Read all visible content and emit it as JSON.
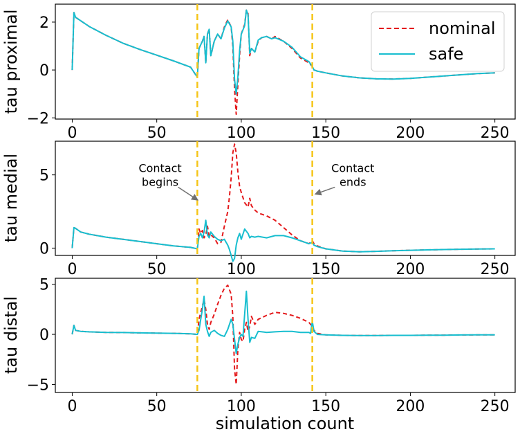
{
  "chart_data": {
    "type": "line",
    "xlabel": "simulation count",
    "xlim": [
      -10,
      262
    ],
    "xticks": [
      0,
      50,
      100,
      150,
      200,
      250
    ],
    "contact_lines": {
      "x": [
        74,
        142
      ],
      "color": "#f5c518",
      "style": "dashed"
    },
    "series_styles": [
      {
        "name": "nominal",
        "color": "#e41a1c",
        "style": "dashed"
      },
      {
        "name": "safe",
        "color": "#17becf",
        "style": "solid"
      }
    ],
    "legend": {
      "placement": "top-right",
      "entries": [
        "nominal",
        "safe"
      ]
    },
    "subplots": [
      {
        "ylabel": "tau proximal",
        "ylim": [
          -2.05,
          2.75
        ],
        "yticks": [
          -2,
          0,
          2
        ],
        "series": [
          {
            "name": "nominal",
            "x": [
              0,
              1,
              2,
              10,
              20,
              30,
              40,
              50,
              60,
              70,
              74,
              75,
              77,
              78,
              79,
              80,
              81,
              82,
              84,
              86,
              88,
              90,
              92,
              94,
              95,
              96,
              97,
              98,
              99,
              100,
              102,
              103,
              104,
              105,
              106,
              108,
              110,
              112,
              115,
              118,
              120,
              125,
              130,
              135,
              140,
              142,
              143,
              145,
              150,
              160,
              170,
              180,
              190,
              200,
              210,
              220,
              230,
              240,
              250
            ],
            "y": [
              0.0,
              2.4,
              2.2,
              1.82,
              1.45,
              1.12,
              0.86,
              0.62,
              0.38,
              0.12,
              -0.3,
              0.9,
              1.2,
              1.4,
              0.3,
              1.5,
              1.7,
              0.6,
              1.2,
              1.5,
              1.3,
              1.8,
              2.1,
              1.8,
              1.0,
              -0.8,
              -1.85,
              -0.6,
              0.6,
              1.5,
              1.9,
              2.5,
              2.35,
              0.6,
              0.9,
              0.75,
              1.2,
              1.35,
              1.4,
              1.3,
              1.4,
              1.2,
              0.9,
              0.5,
              0.3,
              0.15,
              0.0,
              -0.05,
              -0.12,
              -0.25,
              -0.33,
              -0.37,
              -0.38,
              -0.35,
              -0.3,
              -0.25,
              -0.2,
              -0.15,
              -0.12
            ]
          },
          {
            "name": "safe",
            "x": [
              0,
              1,
              2,
              10,
              20,
              30,
              40,
              50,
              60,
              70,
              74,
              75,
              77,
              78,
              79,
              80,
              81,
              82,
              84,
              86,
              88,
              90,
              92,
              94,
              95,
              96,
              97,
              98,
              99,
              100,
              102,
              103,
              104,
              105,
              106,
              108,
              110,
              112,
              115,
              118,
              120,
              125,
              130,
              135,
              140,
              142,
              143,
              145,
              150,
              160,
              170,
              180,
              190,
              200,
              210,
              220,
              230,
              240,
              250
            ],
            "y": [
              0.0,
              2.4,
              2.2,
              1.82,
              1.45,
              1.12,
              0.86,
              0.62,
              0.38,
              0.12,
              -0.3,
              0.9,
              1.2,
              1.4,
              0.3,
              1.5,
              1.7,
              0.6,
              1.2,
              1.5,
              1.3,
              1.75,
              2.05,
              1.8,
              1.2,
              -0.4,
              -1.0,
              -0.3,
              0.8,
              1.5,
              1.85,
              2.5,
              2.3,
              0.7,
              0.9,
              0.75,
              1.25,
              1.35,
              1.4,
              1.3,
              1.35,
              1.2,
              0.95,
              0.55,
              0.35,
              0.15,
              0.0,
              -0.05,
              -0.12,
              -0.25,
              -0.33,
              -0.37,
              -0.38,
              -0.35,
              -0.3,
              -0.25,
              -0.2,
              -0.15,
              -0.12
            ]
          }
        ]
      },
      {
        "ylabel": "tau medial",
        "ylim": [
          -0.5,
          7.3
        ],
        "yticks": [
          0,
          5
        ],
        "series": [
          {
            "name": "nominal",
            "x": [
              0,
              1,
              2,
              5,
              10,
              20,
              30,
              40,
              50,
              60,
              70,
              74,
              75,
              76,
              77,
              78,
              79,
              80,
              81,
              82,
              84,
              86,
              88,
              90,
              92,
              93,
              94,
              95,
              96,
              97,
              98,
              99,
              100,
              102,
              104,
              105,
              106,
              108,
              110,
              115,
              120,
              125,
              130,
              135,
              140,
              142,
              143,
              145,
              150,
              160,
              170,
              180,
              190,
              200,
              210,
              220,
              230,
              240,
              250
            ],
            "y": [
              0.0,
              1.4,
              1.35,
              1.1,
              0.95,
              0.75,
              0.6,
              0.45,
              0.3,
              0.15,
              0.05,
              -0.05,
              1.3,
              1.0,
              1.2,
              0.7,
              0.9,
              1.5,
              0.8,
              0.9,
              0.7,
              0.3,
              0.4,
              1.5,
              2.5,
              3.5,
              4.8,
              6.5,
              7.1,
              6.5,
              5.2,
              4.2,
              3.8,
              3.1,
              2.8,
              3.4,
              2.9,
              2.6,
              2.4,
              2.2,
              1.9,
              1.4,
              0.9,
              0.5,
              0.3,
              0.5,
              0.3,
              0.15,
              -0.05,
              -0.2,
              -0.25,
              -0.22,
              -0.18,
              -0.15,
              -0.12,
              -0.1,
              -0.08,
              -0.06,
              -0.05
            ]
          },
          {
            "name": "safe",
            "x": [
              0,
              1,
              2,
              5,
              10,
              20,
              30,
              40,
              50,
              60,
              70,
              74,
              75,
              76,
              77,
              78,
              79,
              80,
              81,
              82,
              84,
              86,
              88,
              90,
              92,
              93,
              94,
              95,
              96,
              97,
              98,
              99,
              100,
              102,
              104,
              105,
              106,
              108,
              110,
              115,
              120,
              125,
              130,
              135,
              140,
              142,
              143,
              145,
              150,
              160,
              170,
              180,
              190,
              200,
              210,
              220,
              230,
              240,
              250
            ],
            "y": [
              0.0,
              1.4,
              1.35,
              1.1,
              0.95,
              0.75,
              0.6,
              0.45,
              0.3,
              0.15,
              0.05,
              -0.05,
              0.8,
              1.0,
              0.7,
              1.1,
              1.9,
              0.9,
              0.7,
              1.1,
              0.8,
              0.6,
              0.5,
              0.6,
              0.2,
              -0.1,
              -0.5,
              -0.9,
              -0.7,
              0.2,
              0.7,
              1.0,
              0.6,
              1.3,
              1.0,
              0.7,
              0.8,
              0.75,
              0.8,
              0.7,
              0.85,
              0.85,
              0.7,
              0.5,
              0.3,
              0.4,
              0.2,
              0.1,
              -0.05,
              -0.2,
              -0.25,
              -0.22,
              -0.18,
              -0.15,
              -0.12,
              -0.1,
              -0.08,
              -0.06,
              -0.05
            ]
          }
        ]
      },
      {
        "ylabel": "tau distal",
        "ylim": [
          -5.8,
          5.6
        ],
        "yticks": [
          -5,
          0,
          5
        ],
        "series": [
          {
            "name": "nominal",
            "x": [
              0,
              1,
              2,
              5,
              10,
              20,
              30,
              40,
              50,
              60,
              70,
              74,
              75,
              76,
              77,
              78,
              79,
              80,
              81,
              82,
              84,
              86,
              88,
              90,
              92,
              94,
              95,
              96,
              97,
              98,
              99,
              100,
              101,
              102,
              103,
              104,
              105,
              106,
              108,
              110,
              115,
              120,
              125,
              130,
              135,
              140,
              141,
              142,
              143,
              145,
              150,
              160,
              170,
              180,
              190,
              200,
              210,
              220,
              230,
              240,
              250
            ],
            "y": [
              0.0,
              0.9,
              0.4,
              0.3,
              0.25,
              0.2,
              0.18,
              0.15,
              0.12,
              0.1,
              0.05,
              0.0,
              1.5,
              2.2,
              2.8,
              3.5,
              2.5,
              1.0,
              0.5,
              1.2,
              2.0,
              3.0,
              3.9,
              4.6,
              4.9,
              4.0,
              1.8,
              -3.5,
              -5.0,
              -1.5,
              0.2,
              -0.5,
              -0.7,
              0.5,
              1.2,
              0.3,
              0.8,
              1.8,
              1.0,
              1.5,
              1.9,
              2.2,
              2.1,
              1.9,
              1.6,
              1.2,
              1.0,
              0.8,
              0.4,
              0.1,
              -0.05,
              -0.1,
              -0.12,
              -0.12,
              -0.1,
              -0.1,
              -0.08,
              -0.08,
              -0.06,
              -0.05,
              -0.05
            ]
          },
          {
            "name": "safe",
            "x": [
              0,
              1,
              2,
              5,
              10,
              20,
              30,
              40,
              50,
              60,
              70,
              74,
              75,
              76,
              77,
              78,
              79,
              80,
              81,
              82,
              84,
              86,
              88,
              90,
              92,
              94,
              95,
              96,
              97,
              98,
              99,
              100,
              101,
              102,
              103,
              104,
              105,
              106,
              108,
              110,
              115,
              120,
              125,
              130,
              135,
              140,
              141,
              142,
              143,
              145,
              150,
              160,
              170,
              180,
              190,
              200,
              210,
              220,
              230,
              240,
              250
            ],
            "y": [
              0.0,
              0.9,
              0.4,
              0.3,
              0.25,
              0.2,
              0.18,
              0.15,
              0.12,
              0.1,
              0.05,
              0.0,
              0.4,
              1.5,
              2.5,
              3.8,
              1.0,
              0.3,
              -0.2,
              0.2,
              0.4,
              0.1,
              -0.1,
              -0.2,
              0.5,
              1.5,
              1.0,
              -0.5,
              -1.9,
              -1.0,
              -0.3,
              0.0,
              -0.2,
              2.0,
              4.3,
              1.5,
              -0.8,
              -0.3,
              -0.4,
              0.3,
              0.2,
              0.25,
              0.3,
              0.3,
              0.2,
              0.2,
              0.1,
              1.3,
              0.3,
              0.0,
              -0.05,
              -0.1,
              -0.12,
              -0.12,
              -0.1,
              -0.1,
              -0.08,
              -0.08,
              -0.06,
              -0.05,
              -0.05
            ]
          }
        ]
      }
    ],
    "annotations": [
      {
        "subplot": 1,
        "text_lines": [
          "Contact",
          "begins"
        ],
        "text_at": [
          52,
          5.2
        ],
        "arrow_to": [
          74,
          3.3
        ]
      },
      {
        "subplot": 1,
        "text_lines": [
          "Contact",
          "ends"
        ],
        "text_at": [
          166,
          5.2
        ],
        "arrow_to": [
          144,
          3.7
        ]
      }
    ]
  }
}
